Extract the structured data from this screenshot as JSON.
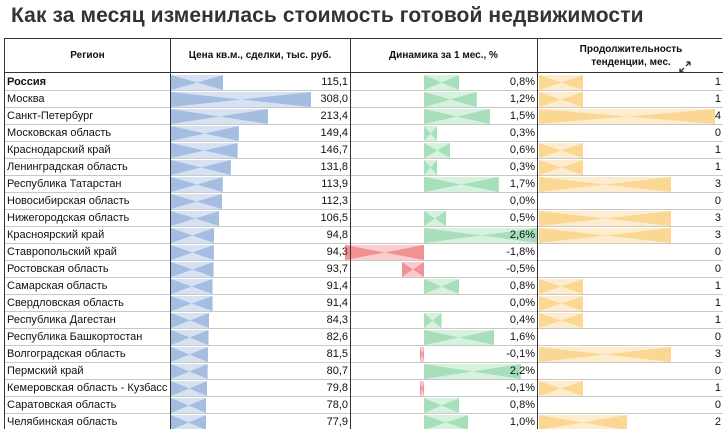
{
  "title": "Как за месяц изменилась стоимость готовой недвижимости",
  "headers": {
    "region": "Регион",
    "price": "Цена кв.м., сделки, тыс. руб.",
    "change": "Динамика за 1 мес., %",
    "duration_line1": "Продолжительность",
    "duration_line2": "тенденции, мес."
  },
  "colors": {
    "price_bar": "#5b86c8",
    "change_pos": "#5cc57f",
    "change_neg": "#e8363c",
    "duration_bar": "#f5b63a"
  },
  "chart_data": {
    "type": "table",
    "columns": [
      "Регион",
      "Цена кв.м., сделки, тыс. руб.",
      "Динамика за 1 мес., %",
      "Продолжительность тенденции, мес."
    ],
    "rows": [
      {
        "region": "Россия",
        "price": "115,1",
        "change": "0,8%",
        "duration": "1",
        "price_v": 115.1,
        "change_v": 0.8,
        "duration_v": 1,
        "bold": true
      },
      {
        "region": "Москва",
        "price": "308,0",
        "change": "1,2%",
        "duration": "1",
        "price_v": 308.0,
        "change_v": 1.2,
        "duration_v": 1
      },
      {
        "region": "Санкт-Петербург",
        "price": "213,4",
        "change": "1,5%",
        "duration": "4",
        "price_v": 213.4,
        "change_v": 1.5,
        "duration_v": 4
      },
      {
        "region": "Московская область",
        "price": "149,4",
        "change": "0,3%",
        "duration": "0",
        "price_v": 149.4,
        "change_v": 0.3,
        "duration_v": 0
      },
      {
        "region": "Краснодарский край",
        "price": "146,7",
        "change": "0,6%",
        "duration": "1",
        "price_v": 146.7,
        "change_v": 0.6,
        "duration_v": 1
      },
      {
        "region": "Ленинградская область",
        "price": "131,8",
        "change": "0,3%",
        "duration": "1",
        "price_v": 131.8,
        "change_v": 0.3,
        "duration_v": 1
      },
      {
        "region": "Республика Татарстан",
        "price": "113,9",
        "change": "1,7%",
        "duration": "3",
        "price_v": 113.9,
        "change_v": 1.7,
        "duration_v": 3
      },
      {
        "region": "Новосибирская область",
        "price": "112,3",
        "change": "0,0%",
        "duration": "0",
        "price_v": 112.3,
        "change_v": 0.0,
        "duration_v": 0
      },
      {
        "region": "Нижегородская область",
        "price": "106,5",
        "change": "0,5%",
        "duration": "3",
        "price_v": 106.5,
        "change_v": 0.5,
        "duration_v": 3
      },
      {
        "region": "Красноярский край",
        "price": "94,8",
        "change": "2,6%",
        "duration": "3",
        "price_v": 94.8,
        "change_v": 2.6,
        "duration_v": 3
      },
      {
        "region": "Ставропольский край",
        "price": "94,3",
        "change": "-1,8%",
        "duration": "0",
        "price_v": 94.3,
        "change_v": -1.8,
        "duration_v": 0
      },
      {
        "region": "Ростовская область",
        "price": "93,7",
        "change": "-0,5%",
        "duration": "0",
        "price_v": 93.7,
        "change_v": -0.5,
        "duration_v": 0
      },
      {
        "region": "Самарская область",
        "price": "91,4",
        "change": "0,8%",
        "duration": "1",
        "price_v": 91.4,
        "change_v": 0.8,
        "duration_v": 1
      },
      {
        "region": "Свердловская область",
        "price": "91,4",
        "change": "0,0%",
        "duration": "1",
        "price_v": 91.4,
        "change_v": 0.0,
        "duration_v": 1
      },
      {
        "region": "Республика Дагестан",
        "price": "84,3",
        "change": "0,4%",
        "duration": "1",
        "price_v": 84.3,
        "change_v": 0.4,
        "duration_v": 1
      },
      {
        "region": "Республика Башкортостан",
        "price": "82,6",
        "change": "1,6%",
        "duration": "0",
        "price_v": 82.6,
        "change_v": 1.6,
        "duration_v": 0
      },
      {
        "region": "Волгоградская область",
        "price": "81,5",
        "change": "-0,1%",
        "duration": "3",
        "price_v": 81.5,
        "change_v": -0.1,
        "duration_v": 3
      },
      {
        "region": "Пермский край",
        "price": "80,7",
        "change": "2,2%",
        "duration": "0",
        "price_v": 80.7,
        "change_v": 2.2,
        "duration_v": 0
      },
      {
        "region": "Кемеровская область - Кузбасс",
        "price": "79,8",
        "change": "-0,1%",
        "duration": "1",
        "price_v": 79.8,
        "change_v": -0.1,
        "duration_v": 1
      },
      {
        "region": "Саратовская область",
        "price": "78,0",
        "change": "0,8%",
        "duration": "0",
        "price_v": 78.0,
        "change_v": 0.8,
        "duration_v": 0
      },
      {
        "region": "Челябинская область",
        "price": "77,9",
        "change": "1,0%",
        "duration": "2",
        "price_v": 77.9,
        "change_v": 1.0,
        "duration_v": 2
      }
    ],
    "price_max": 308.0,
    "change_range": [
      -1.8,
      2.6
    ],
    "duration_max": 4
  }
}
